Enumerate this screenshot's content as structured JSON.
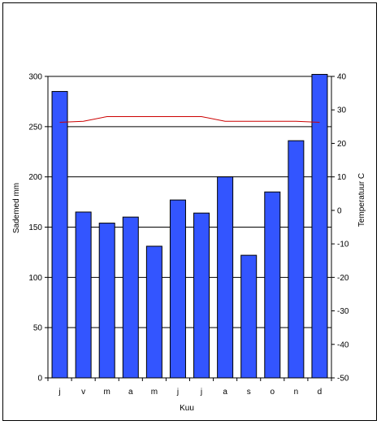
{
  "chart_data": {
    "type": "bar",
    "categories": [
      "j",
      "v",
      "m",
      "a",
      "m",
      "j",
      "j",
      "a",
      "s",
      "o",
      "n",
      "d"
    ],
    "series": [
      {
        "type": "bar",
        "axis": "left",
        "color": "#3355ff",
        "values": [
          285,
          165,
          154,
          160,
          131,
          177,
          164,
          200,
          122,
          185,
          236,
          302
        ]
      },
      {
        "type": "line",
        "axis": "right",
        "color": "#cc0000",
        "values": [
          26.3,
          26.6,
          28.0,
          28.0,
          28.0,
          28.0,
          28.0,
          26.6,
          26.6,
          26.6,
          26.6,
          26.3
        ]
      }
    ],
    "xlabel": "Kuu",
    "ylabel": "Sademed mm",
    "y2label": "Temperatuur C",
    "ylim": [
      0,
      300
    ],
    "y2lim": [
      -50,
      40
    ],
    "yticks": [
      0,
      50,
      100,
      150,
      200,
      250,
      300
    ],
    "y2ticks": [
      -50,
      -40,
      -30,
      -20,
      -10,
      0,
      10,
      20,
      30,
      40
    ],
    "grid": true
  }
}
